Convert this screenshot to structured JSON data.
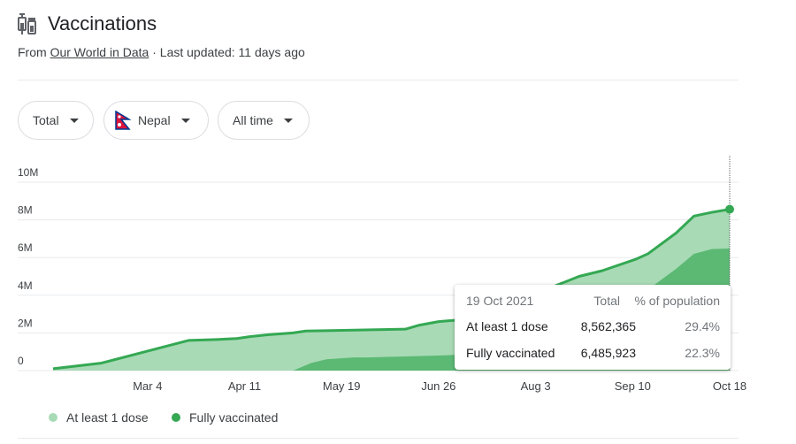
{
  "header": {
    "title": "Vaccinations",
    "source_prefix": "From ",
    "source_link": "Our World in Data",
    "source_suffix": " · Last updated: 11 days ago"
  },
  "filters": {
    "metric": "Total",
    "country": "Nepal",
    "range": "All time"
  },
  "tooltip": {
    "date": "19 Oct 2021",
    "col_total": "Total",
    "col_percent": "% of population",
    "rows": [
      {
        "label": "At least 1 dose",
        "total": "8,562,365",
        "percent": "29.4%"
      },
      {
        "label": "Fully vaccinated",
        "total": "6,485,923",
        "percent": "22.3%"
      }
    ]
  },
  "legend": [
    {
      "label": "At least 1 dose",
      "color": "#a8dab5"
    },
    {
      "label": "Fully vaccinated",
      "color": "#34a853"
    }
  ],
  "colors": {
    "dose1_fill": "#a8dab5",
    "line": "#34a853",
    "full_fill": "#5bb974",
    "grid": "#e8eaed"
  },
  "chart_data": {
    "type": "area",
    "x_ticks": [
      "Mar 4",
      "Apr 11",
      "May 19",
      "Jun 26",
      "Aug 3",
      "Sep 10",
      "Oct 18"
    ],
    "x_tick_days": [
      37,
      75,
      113,
      151,
      189,
      227,
      265
    ],
    "y_ticks": [
      "0",
      "2M",
      "4M",
      "6M",
      "8M",
      "10M"
    ],
    "ylim": [
      0,
      10000000
    ],
    "xlim": [
      0,
      265
    ],
    "series": [
      {
        "name": "At least 1 dose",
        "x": [
          0,
          19,
          53,
          64,
          72,
          77,
          84,
          94,
          99,
          138,
          143,
          151,
          160,
          180,
          193,
          206,
          215,
          228,
          233,
          244,
          251,
          258,
          265
        ],
        "values": [
          100000,
          400000,
          1600000,
          1650000,
          1700000,
          1800000,
          1900000,
          2000000,
          2100000,
          2200000,
          2400000,
          2600000,
          2700000,
          3800000,
          4300000,
          5000000,
          5300000,
          5900000,
          6200000,
          7300000,
          8200000,
          8400000,
          8562365
        ]
      },
      {
        "name": "Fully vaccinated",
        "x": [
          0,
          94,
          101,
          107,
          118,
          123,
          151,
          189,
          206,
          215,
          228,
          233,
          244,
          251,
          258,
          265
        ],
        "values": [
          0,
          0,
          400000,
          600000,
          700000,
          700000,
          800000,
          1000000,
          2300000,
          3100000,
          3800000,
          4300000,
          5400000,
          6200000,
          6450000,
          6485923
        ]
      }
    ]
  }
}
